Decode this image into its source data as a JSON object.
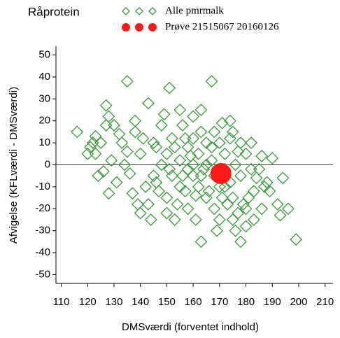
{
  "chart_data": {
    "type": "scatter",
    "legend_title": "Råprotein",
    "x_label": "DMSværdi (forventet indhold)",
    "y_label": "Afvigelse (KFLværdi - DMSværdi)",
    "xlim": [
      108,
      213
    ],
    "ylim": [
      -54,
      54
    ],
    "xticks": [
      110,
      120,
      130,
      140,
      150,
      160,
      170,
      180,
      190,
      200,
      210
    ],
    "yticks": [
      -50,
      -40,
      -30,
      -20,
      -10,
      0,
      10,
      20,
      30,
      40,
      50
    ],
    "refline": 0,
    "legend": "top",
    "series": [
      {
        "name": "Alle pmrmalk",
        "color": "#3a9a3a",
        "marker": "diamond",
        "x": [
          116,
          121,
          123,
          127,
          128,
          128,
          135,
          143,
          151,
          167,
          190,
          196,
          199,
          193,
          178,
          163,
          153,
          140,
          143,
          131,
          123,
          126,
          134,
          137,
          146,
          155,
          160,
          171,
          175,
          185,
          188,
          183,
          180,
          186,
          176,
          170,
          158,
          150,
          145,
          140,
          138,
          133,
          130,
          148,
          157,
          162,
          165,
          168,
          172,
          175,
          178,
          180,
          182,
          178,
          172,
          165,
          160,
          155,
          152,
          150,
          155,
          158,
          160,
          162,
          165,
          168,
          170,
          172,
          174,
          176,
          174,
          168,
          163,
          156,
          152,
          148,
          145,
          142,
          147,
          150,
          154,
          158,
          163,
          167,
          170,
          173,
          177,
          181,
          184,
          186,
          189,
          192,
          194,
          180,
          163,
          149,
          138,
          132,
          125,
          120,
          129,
          136,
          139,
          144,
          157,
          161,
          166,
          169,
          175,
          179,
          183,
          187,
          160,
          164,
          156,
          153,
          151,
          159,
          161,
          167,
          171,
          177,
          182,
          174,
          146,
          141,
          135,
          127,
          124,
          122
        ],
        "values": [
          15,
          8,
          13,
          27,
          22,
          -13,
          38,
          28,
          35,
          38,
          3,
          -20,
          -34,
          -23,
          -35,
          -35,
          -25,
          -22,
          -18,
          -8,
          5,
          -3,
          0,
          -13,
          8,
          25,
          22,
          19,
          15,
          -2,
          -8,
          -12,
          -28,
          -20,
          -30,
          -25,
          -20,
          -15,
          -5,
          5,
          15,
          10,
          18,
          18,
          12,
          5,
          0,
          -5,
          -10,
          -15,
          -5,
          5,
          10,
          10,
          5,
          10,
          -5,
          -10,
          -5,
          5,
          2,
          8,
          0,
          -10,
          -15,
          -20,
          -10,
          -2,
          -8,
          0,
          12,
          15,
          15,
          18,
          12,
          0,
          10,
          -10,
          -12,
          -22,
          -18,
          -2,
          -5,
          2,
          10,
          -18,
          -22,
          -15,
          -6,
          4,
          -12,
          -18,
          -6,
          -20,
          25,
          23,
          20,
          14,
          10,
          5,
          2,
          -4,
          -18,
          -25,
          -12,
          -25,
          -12,
          -30,
          -25,
          -18,
          -25,
          -10,
          12,
          -2,
          -5,
          8,
          -2,
          4,
          -14,
          8,
          -15,
          6,
          -2,
          20,
          -8,
          12,
          6,
          18,
          -5,
          10
        ]
      },
      {
        "name": "Prøve 21515067 20160126",
        "color": "#ff1a1a",
        "marker": "dot",
        "x": [
          170.5
        ],
        "values": [
          -4
        ]
      }
    ]
  }
}
